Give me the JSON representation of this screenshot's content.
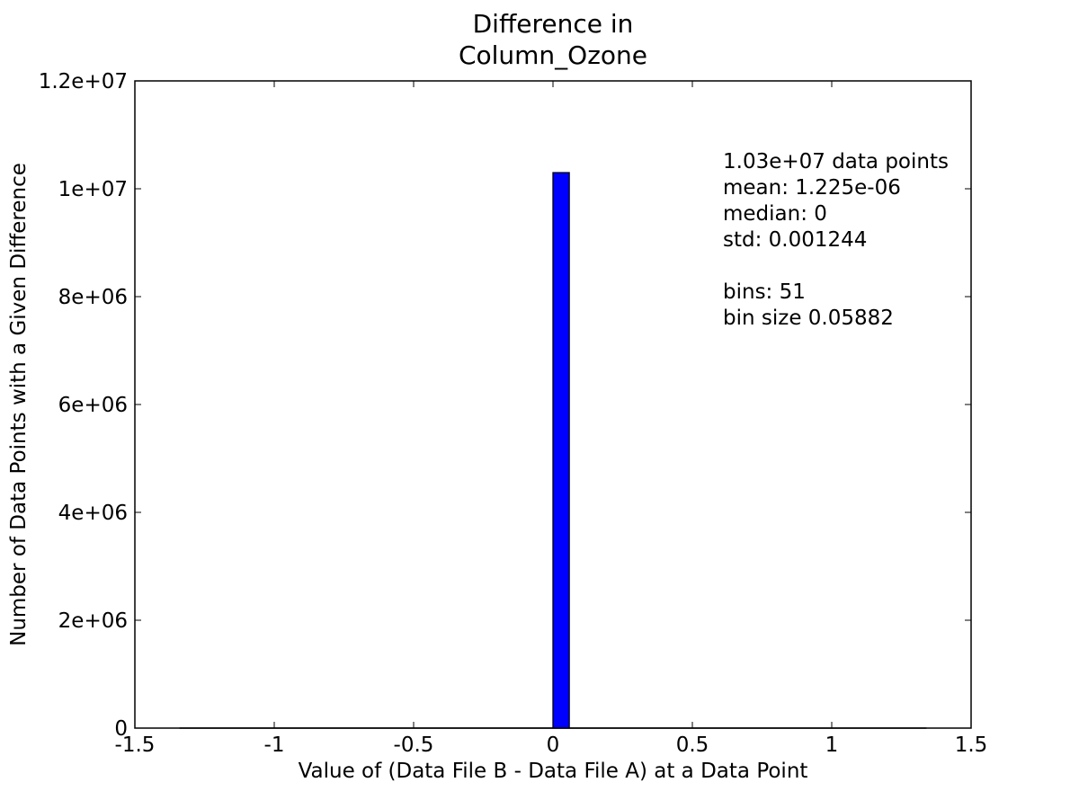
{
  "chart_data": {
    "type": "bar",
    "title_lines": [
      "Difference in",
      "Column_Ozone"
    ],
    "xlabel": "Value of (Data File B - Data File A) at a Data Point",
    "ylabel": "Number of Data Points with a Given Difference",
    "xlim": [
      -1.5,
      1.5
    ],
    "ylim": [
      0,
      12000000
    ],
    "x_ticks": [
      -1.5,
      -1,
      -0.5,
      0,
      0.5,
      1,
      1.5
    ],
    "x_tick_labels": [
      "-1.5",
      "-1",
      "-0.5",
      "0",
      "0.5",
      "1",
      "1.5"
    ],
    "y_ticks": [
      0,
      2000000,
      4000000,
      6000000,
      8000000,
      10000000,
      12000000
    ],
    "y_tick_labels": [
      "0",
      "2e+06",
      "4e+06",
      "6e+06",
      "8e+06",
      "1e+07",
      "1.2e+07"
    ],
    "bins": [
      {
        "start": -0.0002,
        "end": 0.0586,
        "count": 10300000
      }
    ],
    "baseline_range": [
      -1.34,
      1.34
    ],
    "bar_color": "#0000ff",
    "grid": false,
    "annotation_lines": [
      "1.03e+07 data points",
      "mean: 1.225e-06",
      "median: 0",
      "std: 0.001244",
      "",
      "bins: 51",
      "bin size 0.05882"
    ]
  }
}
